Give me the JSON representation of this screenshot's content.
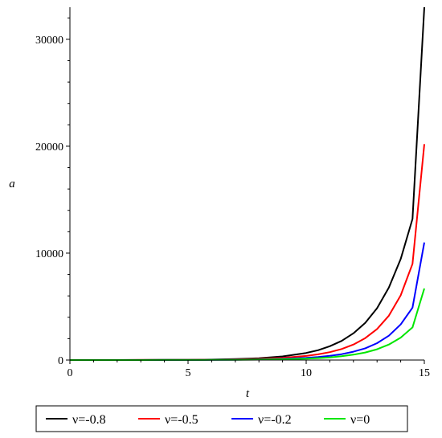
{
  "chart_data": {
    "type": "line",
    "title": "",
    "xlabel": "t",
    "ylabel": "a",
    "xlim": [
      0,
      15
    ],
    "ylim": [
      0,
      33000
    ],
    "xticks": [
      0,
      5,
      10,
      15
    ],
    "yticks": [
      0,
      10000,
      20000,
      30000
    ],
    "grid": false,
    "legend_position": "bottom",
    "series": [
      {
        "name": "ν=-0.8",
        "color": "#000000",
        "x": [
          0,
          1,
          2,
          3,
          4,
          5,
          6,
          7,
          8,
          9,
          10,
          10.5,
          11,
          11.5,
          12,
          12.5,
          13,
          13.5,
          14,
          14.5,
          15
        ],
        "y": [
          1,
          2,
          3,
          6,
          12,
          24,
          46,
          90,
          175,
          340,
          660,
          920,
          1290,
          1790,
          2500,
          3480,
          4850,
          6780,
          9450,
          13200,
          33000
        ]
      },
      {
        "name": "ν=-0.5",
        "color": "#ff0000",
        "x": [
          0,
          1,
          2,
          3,
          4,
          5,
          6,
          7,
          8,
          9,
          10,
          10.5,
          11,
          11.5,
          12,
          12.5,
          13,
          13.5,
          14,
          14.5,
          15
        ],
        "y": [
          1,
          2,
          3,
          5,
          9,
          16,
          30,
          56,
          105,
          200,
          380,
          530,
          740,
          1030,
          1450,
          2050,
          2900,
          4150,
          6050,
          9000,
          20200
        ]
      },
      {
        "name": "ν=-0.2",
        "color": "#0000ff",
        "x": [
          0,
          1,
          2,
          3,
          4,
          5,
          6,
          7,
          8,
          9,
          10,
          10.5,
          11,
          11.5,
          12,
          12.5,
          13,
          13.5,
          14,
          14.5,
          15
        ],
        "y": [
          1,
          1,
          2,
          3,
          6,
          10,
          18,
          33,
          60,
          110,
          200,
          280,
          390,
          550,
          780,
          1100,
          1580,
          2280,
          3330,
          4900,
          11000
        ]
      },
      {
        "name": "ν=0",
        "color": "#00e600",
        "x": [
          0,
          1,
          2,
          3,
          4,
          5,
          6,
          7,
          8,
          9,
          10,
          10.5,
          11,
          11.5,
          12,
          12.5,
          13,
          13.5,
          14,
          14.5,
          15
        ],
        "y": [
          1,
          1,
          2,
          3,
          4,
          7,
          12,
          22,
          40,
          72,
          130,
          180,
          250,
          350,
          500,
          710,
          1010,
          1450,
          2100,
          3050,
          6700
        ]
      }
    ]
  }
}
